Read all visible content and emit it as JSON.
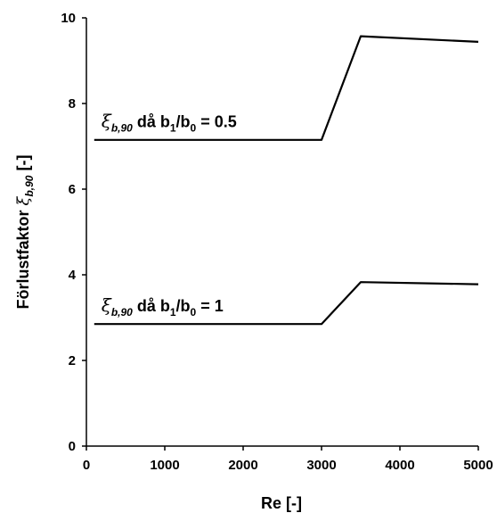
{
  "chart_data": {
    "type": "line",
    "xlabel": "Re [-]",
    "ylabel": {
      "prefix": "Förlustfaktor ",
      "symbol": "ξ",
      "subscript": "b,90",
      "suffix": " [-]"
    },
    "xlim": [
      0,
      5000
    ],
    "ylim": [
      0,
      10
    ],
    "xticks": [
      0,
      1000,
      2000,
      3000,
      4000,
      5000
    ],
    "yticks": [
      0,
      2,
      4,
      6,
      8,
      10
    ],
    "grid": false,
    "legend": "none",
    "series": [
      {
        "x": [
          100,
          3000,
          3500,
          5000
        ],
        "y": [
          7.15,
          7.15,
          9.57,
          9.44
        ],
        "label": {
          "symbol": "ξ",
          "subscript": "b,90",
          "text_a": " då b",
          "sub_a": "1",
          "text_b": "/b",
          "sub_b": "0",
          "text_c": " = 0.5"
        },
        "label_at": [
          100,
          7.45
        ]
      },
      {
        "x": [
          100,
          3000,
          3500,
          5000
        ],
        "y": [
          2.85,
          2.85,
          3.83,
          3.78
        ],
        "label": {
          "symbol": "ξ",
          "subscript": "b,90",
          "text_a": " då b",
          "sub_a": "1",
          "text_b": "/b",
          "sub_b": "0",
          "text_c": " = 1"
        },
        "label_at": [
          100,
          3.15
        ]
      }
    ]
  }
}
